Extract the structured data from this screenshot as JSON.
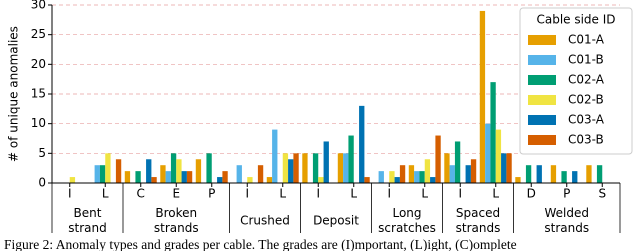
{
  "chart_data": {
    "type": "bar",
    "ylabel": "# of unique anomalies",
    "groups": [
      {
        "name": "Bent strand",
        "categories": [
          "I",
          "L"
        ]
      },
      {
        "name": "Broken strands",
        "categories": [
          "C",
          "E",
          "P"
        ]
      },
      {
        "name": "Crushed",
        "categories": [
          "I",
          "L"
        ]
      },
      {
        "name": "Deposit",
        "categories": [
          "I",
          "L"
        ]
      },
      {
        "name": "Long scratches",
        "categories": [
          "I",
          "L"
        ]
      },
      {
        "name": "Spaced strands",
        "categories": [
          "I",
          "L"
        ]
      },
      {
        "name": "Welded strands",
        "categories": [
          "D",
          "P",
          "S"
        ]
      }
    ],
    "series": [
      {
        "name": "C01-A",
        "color": "#e69f00",
        "values": [
          0,
          0,
          2,
          3,
          4,
          0,
          1,
          5,
          5,
          0,
          3,
          5,
          29,
          1,
          3,
          3
        ]
      },
      {
        "name": "C01-B",
        "color": "#56b4e9",
        "values": [
          0,
          3,
          0,
          2,
          0,
          3,
          9,
          0,
          5,
          2,
          2,
          3,
          10,
          0,
          0,
          0
        ]
      },
      {
        "name": "C02-A",
        "color": "#009e73",
        "values": [
          0,
          3,
          2,
          5,
          5,
          0,
          0,
          5,
          8,
          0,
          2,
          7,
          17,
          3,
          2,
          3
        ]
      },
      {
        "name": "C02-B",
        "color": "#f0e442",
        "values": [
          1,
          5,
          0,
          4,
          0,
          1,
          5,
          1,
          0,
          2,
          4,
          0,
          9,
          0,
          0,
          0
        ]
      },
      {
        "name": "C03-A",
        "color": "#0072b2",
        "values": [
          0,
          0,
          4,
          2,
          1,
          0,
          4,
          7,
          13,
          1,
          1,
          3,
          5,
          3,
          2,
          0
        ]
      },
      {
        "name": "C03-B",
        "color": "#d55e00",
        "values": [
          0,
          4,
          1,
          2,
          2,
          3,
          5,
          0,
          1,
          3,
          8,
          4,
          5,
          0,
          0,
          0
        ]
      }
    ],
    "ylim": [
      0,
      30
    ],
    "yticks": [
      0,
      5,
      10,
      15,
      20,
      25,
      30
    ],
    "grid": true,
    "legend": {
      "title": "Cable side ID",
      "position": "upper right"
    },
    "caption": "Figure 2: Anomaly types and grades per cable. The grades are (I)mportant, (L)ight, (C)omplete"
  }
}
